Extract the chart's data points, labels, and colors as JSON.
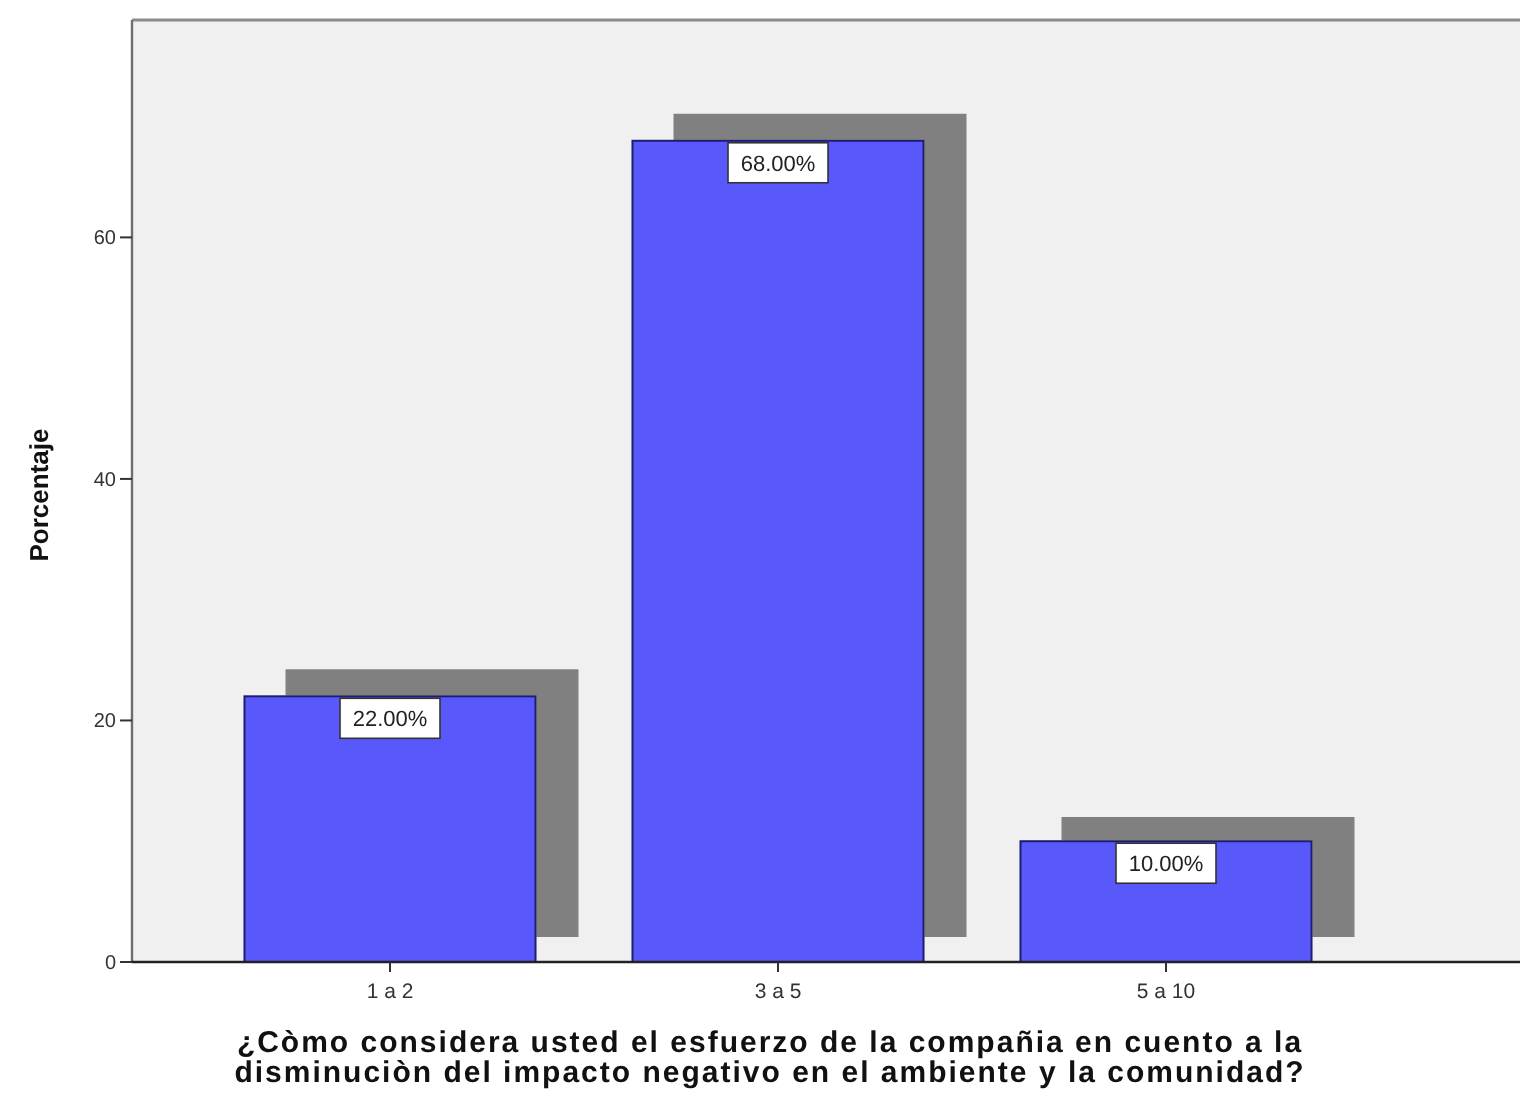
{
  "chart_data": {
    "type": "bar",
    "xlabel": "¿Còmo considera usted el esfuerzo de la compañia en cuento a la disminuciòn del impacto negativo en el ambiente y la comunidad?",
    "ylabel": "Porcentaje",
    "categories": [
      "1 a 2",
      "3 a 5",
      "5 a 10"
    ],
    "values": [
      22,
      68,
      10
    ],
    "color": "#5959fb",
    "value_labels": [
      "22.00%",
      "68.00%",
      "10.00%"
    ],
    "ylim": [
      0,
      78
    ],
    "yticks": [
      0,
      20,
      40,
      60
    ]
  }
}
